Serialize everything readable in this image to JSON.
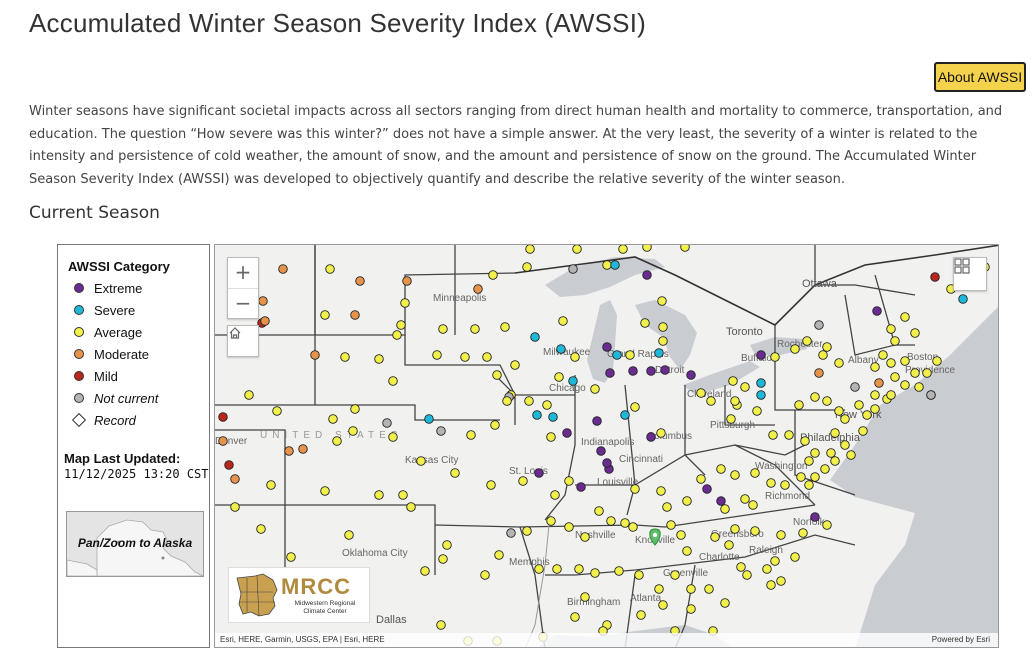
{
  "page": {
    "title": "Accumulated Winter Season Severity Index (AWSSI)",
    "about_button": "About AWSSI",
    "intro": "Winter seasons have significant societal impacts across all sectors ranging from direct human health and mortality to commerce, transportation, and education. The question “How severe was this winter?” does not have a simple answer. At the very least, the severity of a winter is related to the intensity and persistence of cold weather, the amount of snow, and the amount and persistence of snow on the ground. The Accumulated Winter Season Severity Index (AWSSI) was developed to objectively quantify and describe the relative severity of the winter season.",
    "section_title": "Current Season"
  },
  "legend": {
    "title": "AWSSI Category",
    "items": [
      {
        "label": "Extreme",
        "color": "#6a2c91",
        "italic": false
      },
      {
        "label": "Severe",
        "color": "#20b8d8",
        "italic": false
      },
      {
        "label": "Average",
        "color": "#f2f04a",
        "italic": false
      },
      {
        "label": "Moderate",
        "color": "#e8934a",
        "italic": false
      },
      {
        "label": "Mild",
        "color": "#b8261c",
        "italic": false
      },
      {
        "label": "Not current",
        "color": "#b4b4b4",
        "italic": true
      },
      {
        "label": "Record",
        "color": "#ffffff",
        "italic": true
      }
    ],
    "updated_label": "Map Last Updated:",
    "updated_value": "11/12/2025 13:20 CST",
    "alaska_link": "Pan/Zoom to Alaska"
  },
  "map": {
    "zoom_in": "+",
    "zoom_out": "−",
    "country_label": "UNITED STATES",
    "cities": [
      "Ottawa",
      "Minneapolis",
      "Toronto",
      "Milwaukee",
      "Grand Rapids",
      "Rochester",
      "Buffalo",
      "Albany",
      "Boston",
      "Providence",
      "Detroit",
      "Chicago",
      "Cleveland",
      "New York",
      "Pittsburgh",
      "Philadelphia",
      "Indianapolis",
      "Columbus",
      "Washington",
      "Kansas City",
      "Cincinnati",
      "St. Louis",
      "Louisville",
      "Richmond",
      "Norfolk",
      "Nashville",
      "Knoxville",
      "Greensboro",
      "Raleigh",
      "Charlotte",
      "Oklahoma City",
      "Memphis",
      "Greenville",
      "Birmingham",
      "Atlanta",
      "Dallas",
      "Denver"
    ],
    "mrcc_name": "MRCC",
    "mrcc_sub": "Midwestern Regional Climate Center",
    "attribution": "Esri, HERE, Garmin, USGS, EPA | Esri, HERE",
    "powered_by": "Powered by Esri",
    "colors": {
      "extreme": "#6a2c91",
      "severe": "#20b8d8",
      "average": "#f2f04a",
      "moderate": "#e8934a",
      "mild": "#b8261c",
      "not_current": "#b4b4b4",
      "water": "#c9ccd1",
      "land": "#f1f1f0"
    }
  }
}
